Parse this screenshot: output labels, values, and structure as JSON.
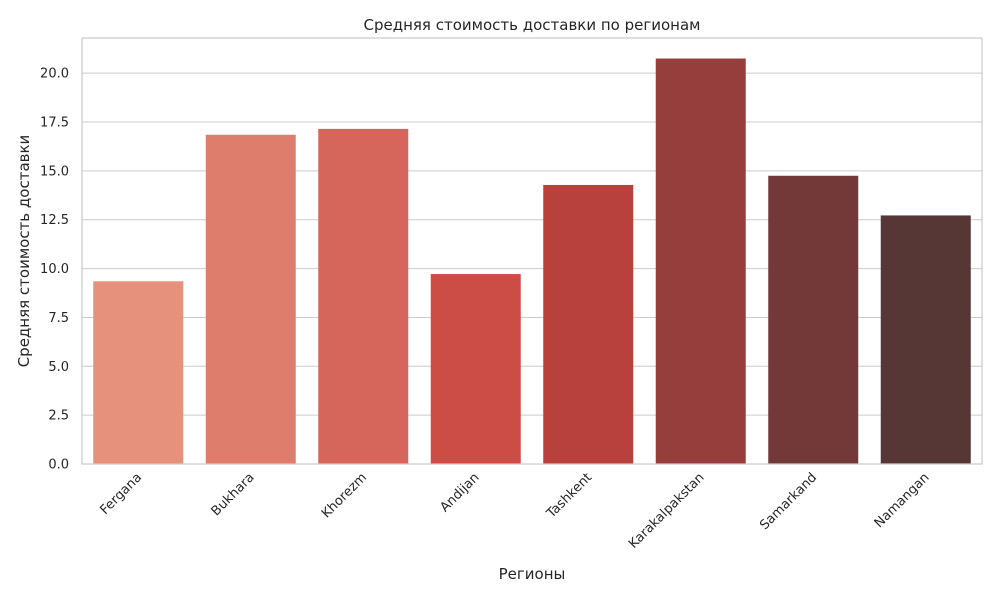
{
  "chart_data": {
    "type": "bar",
    "title": "Средняя стоимость доставки по регионам",
    "xlabel": "Регионы",
    "ylabel": "Средняя стоимость доставки",
    "categories": [
      "Fergana",
      "Bukhara",
      "Khorezm",
      "Andijan",
      "Tashkent",
      "Karakalpakstan",
      "Samarkand",
      "Namangan"
    ],
    "values": [
      9.35,
      16.85,
      17.15,
      9.72,
      14.28,
      20.75,
      14.75,
      12.72
    ],
    "colors": [
      "#E5917B",
      "#DF7D6C",
      "#D6665B",
      "#CB4D45",
      "#B8413C",
      "#963E3B",
      "#733938",
      "#573636"
    ],
    "ylim": [
      0,
      21.8
    ],
    "yticks": [
      0.0,
      2.5,
      5.0,
      7.5,
      10.0,
      12.5,
      15.0,
      17.5,
      20.0
    ],
    "ytick_labels": [
      "0.0",
      "2.5",
      "5.0",
      "7.5",
      "10.0",
      "12.5",
      "15.0",
      "17.5",
      "20.0"
    ],
    "grid": true,
    "xtick_rotation": 45
  }
}
